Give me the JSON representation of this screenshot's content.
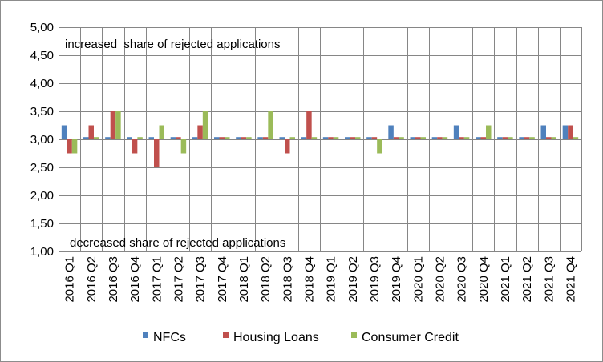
{
  "chart_data": {
    "type": "bar",
    "categories": [
      "2016 Q1",
      "2016 Q2",
      "2016 Q3",
      "2016 Q4",
      "2017 Q1",
      "2017 Q2",
      "2017 Q3",
      "2017 Q4",
      "2018 Q1",
      "2018 Q2",
      "2018 Q3",
      "2018 Q4",
      "2019 Q1",
      "2019 Q2",
      "2019 Q3",
      "2019 Q4",
      "2020 Q1",
      "2020 Q2",
      "2020 Q3",
      "2020 Q4",
      "2021 Q1",
      "2021 Q2",
      "2021 Q3",
      "2021 Q4"
    ],
    "series": [
      {
        "name": "NFCs",
        "color": "#4f81bd",
        "values": [
          3.25,
          3.04,
          3.04,
          3.04,
          3.04,
          3.04,
          3.04,
          3.04,
          3.04,
          3.04,
          3.04,
          3.04,
          3.04,
          3.04,
          3.04,
          3.25,
          3.04,
          3.04,
          3.25,
          3.04,
          3.04,
          3.04,
          3.25,
          3.25
        ]
      },
      {
        "name": "Housing Loans",
        "color": "#c0504d",
        "values": [
          2.75,
          3.25,
          3.5,
          2.75,
          2.5,
          3.04,
          3.25,
          3.04,
          3.04,
          3.04,
          2.75,
          3.5,
          3.04,
          3.04,
          3.04,
          3.04,
          3.04,
          3.04,
          3.04,
          3.04,
          3.04,
          3.04,
          3.04,
          3.25
        ]
      },
      {
        "name": "Consumer Credit",
        "color": "#9bbb59",
        "values": [
          2.75,
          3.04,
          3.5,
          3.04,
          3.25,
          2.75,
          3.5,
          3.04,
          3.04,
          3.5,
          3.04,
          3.04,
          3.04,
          3.04,
          2.75,
          3.04,
          3.04,
          3.04,
          3.04,
          3.25,
          3.04,
          3.04,
          3.04,
          3.04
        ]
      }
    ],
    "baseline": 3.0,
    "ylim": [
      1.0,
      5.0
    ],
    "yticks": [
      "1,00",
      "1,50",
      "2,00",
      "2,50",
      "3,00",
      "3,50",
      "4,00",
      "4,50",
      "5,00"
    ],
    "ytick_values": [
      1.0,
      1.5,
      2.0,
      2.5,
      3.0,
      3.5,
      4.0,
      4.5,
      5.0
    ],
    "grid": true,
    "legend_position": "bottom",
    "annotations": {
      "top": "increased  share of rejected applications",
      "bottom": "decreased share of rejected applications"
    },
    "grid_color": "#868686"
  }
}
